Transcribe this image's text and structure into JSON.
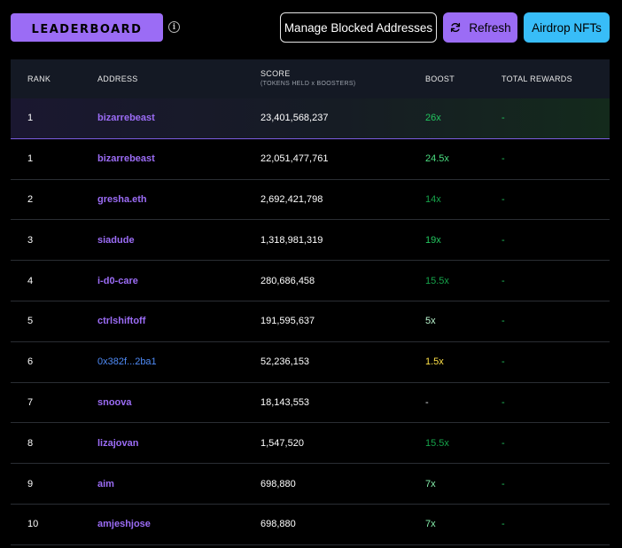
{
  "header": {
    "title": "Leaderboard",
    "info_icon": "i",
    "buttons": {
      "manage": "Manage Blocked Addresses",
      "refresh": "Refresh",
      "airdrop": "Airdrop NFTs"
    }
  },
  "table": {
    "columns": {
      "rank": "RANK",
      "address": "ADDRESS",
      "score": "SCORE",
      "score_sub": "(TOKENS HELD x BOOSTERS)",
      "boost": "BOOST",
      "rewards": "TOTAL REWARDS"
    },
    "rows": [
      {
        "rank": "1",
        "address": "bizarrebeast",
        "score": "23,401,568,237",
        "boost": "26x",
        "rewards": "-",
        "boost_color": "#22c55e"
      },
      {
        "rank": "1",
        "address": "bizarrebeast",
        "score": "22,051,477,761",
        "boost": "24.5x",
        "rewards": "-",
        "boost_color": "#4ade80"
      },
      {
        "rank": "2",
        "address": "gresha.eth",
        "score": "2,692,421,798",
        "boost": "14x",
        "rewards": "-",
        "boost_color": "#16a34a"
      },
      {
        "rank": "3",
        "address": "siadude",
        "score": "1,318,981,319",
        "boost": "19x",
        "rewards": "-",
        "boost_color": "#22c55e"
      },
      {
        "rank": "4",
        "address": "i-d0-care",
        "score": "280,686,458",
        "boost": "15.5x",
        "rewards": "-",
        "boost_color": "#16a34a"
      },
      {
        "rank": "5",
        "address": "ctrlshiftoff",
        "score": "191,595,637",
        "boost": "5x",
        "rewards": "-",
        "boost_color": "#bbf7d0"
      },
      {
        "rank": "6",
        "address": "0x382f...2ba1",
        "score": "52,236,153",
        "boost": "1.5x",
        "rewards": "-",
        "boost_color": "#fde047"
      },
      {
        "rank": "7",
        "address": "snoova",
        "score": "18,143,553",
        "boost": "-",
        "rewards": "-",
        "boost_color": "#e5e7eb"
      },
      {
        "rank": "8",
        "address": "lizajovan",
        "score": "1,547,520",
        "boost": "15.5x",
        "rewards": "-",
        "boost_color": "#16a34a"
      },
      {
        "rank": "9",
        "address": "aim",
        "score": "698,880",
        "boost": "7x",
        "rewards": "-",
        "boost_color": "#86efac"
      },
      {
        "rank": "10",
        "address": "amjeshjose",
        "score": "698,880",
        "boost": "7x",
        "rewards": "-",
        "boost_color": "#86efac"
      }
    ]
  },
  "colors": {
    "accent": "#9b6cf5",
    "airdrop": "#38bdf8",
    "reward": "#22c55e"
  }
}
